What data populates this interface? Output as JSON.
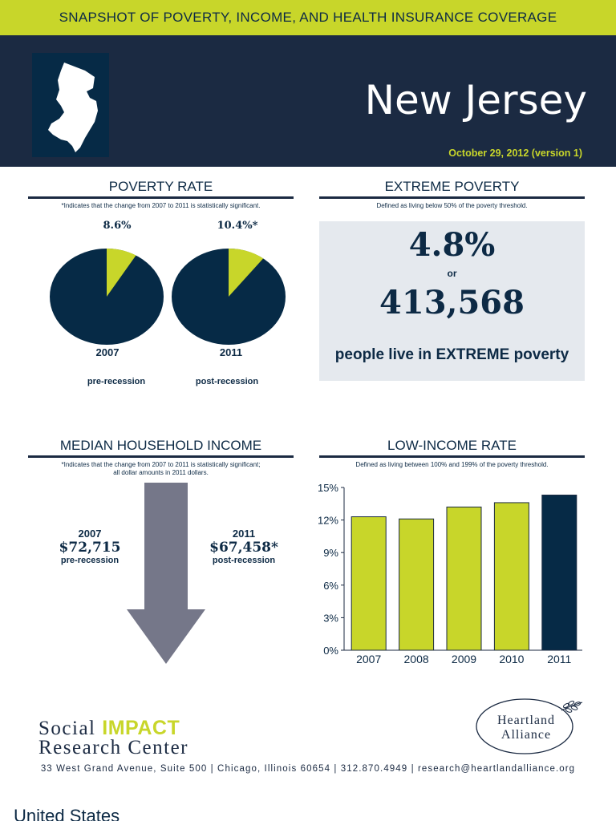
{
  "banner": {
    "title": "SNAPSHOT OF POVERTY, INCOME, AND HEALTH INSURANCE COVERAGE"
  },
  "header": {
    "state": "New Jersey",
    "date": "October 29, 2012 (version 1)",
    "map_icon": "new-jersey-state-outline"
  },
  "poverty_rate": {
    "title": "POVERTY RATE",
    "note": "*Indicates that the change from 2007 to 2011 is statistically significant.",
    "pies": [
      {
        "year": "2007",
        "label": "8.6%",
        "value": 8.6,
        "sub": "pre-recession"
      },
      {
        "year": "2011",
        "label": "10.4%*",
        "value": 10.4,
        "sub": "post-recession"
      }
    ]
  },
  "extreme_poverty": {
    "title": "EXTREME POVERTY",
    "note": "Defined as living below 50% of the poverty threshold.",
    "percent": "4.8%",
    "or": "or",
    "count": "413,568",
    "text": "people live in EXTREME poverty"
  },
  "median_income": {
    "title": "MEDIAN HOUSEHOLD INCOME",
    "note_line1": "*Indicates that the change from 2007 to 2011 is statistically significant;",
    "note_line2": "all dollar amounts in 2011 dollars.",
    "left": {
      "year": "2007",
      "value": "$72,715",
      "sub": "pre-recession"
    },
    "right": {
      "year": "2011",
      "value": "$67,458*",
      "sub": "post-recession"
    }
  },
  "low_income": {
    "title": "LOW-INCOME RATE",
    "note": "Defined as living between 100% and 199% of the poverty threshold."
  },
  "chart_data": {
    "type": "bar",
    "categories": [
      "2007",
      "2008",
      "2009",
      "2010",
      "2011"
    ],
    "values": [
      12.3,
      12.1,
      13.2,
      13.6,
      14.3
    ],
    "yticks": [
      "0%",
      "3%",
      "6%",
      "9%",
      "12%",
      "15%"
    ],
    "ylim": [
      0,
      15
    ],
    "title": "LOW-INCOME RATE",
    "highlight_index": 4,
    "colors": {
      "bar": "#c8d62a",
      "highlight": "#062a46"
    }
  },
  "footer": {
    "org_line1_a": "Social ",
    "org_line1_b": "IMPACT",
    "org_line2": "Research Center",
    "partner_line1": "Heartland",
    "partner_line2": "Alliance",
    "address": "33 West Grand Avenue, Suite 500 | Chicago, Illinois 60654 | 312.870.4949 | research@heartlandalliance.org"
  },
  "next_page_title": "United States",
  "colors": {
    "navy": "#1b2a42",
    "dark": "#062a46",
    "lime": "#c8d62a",
    "panel": "#e5e9ee",
    "arrow": "#757789"
  }
}
